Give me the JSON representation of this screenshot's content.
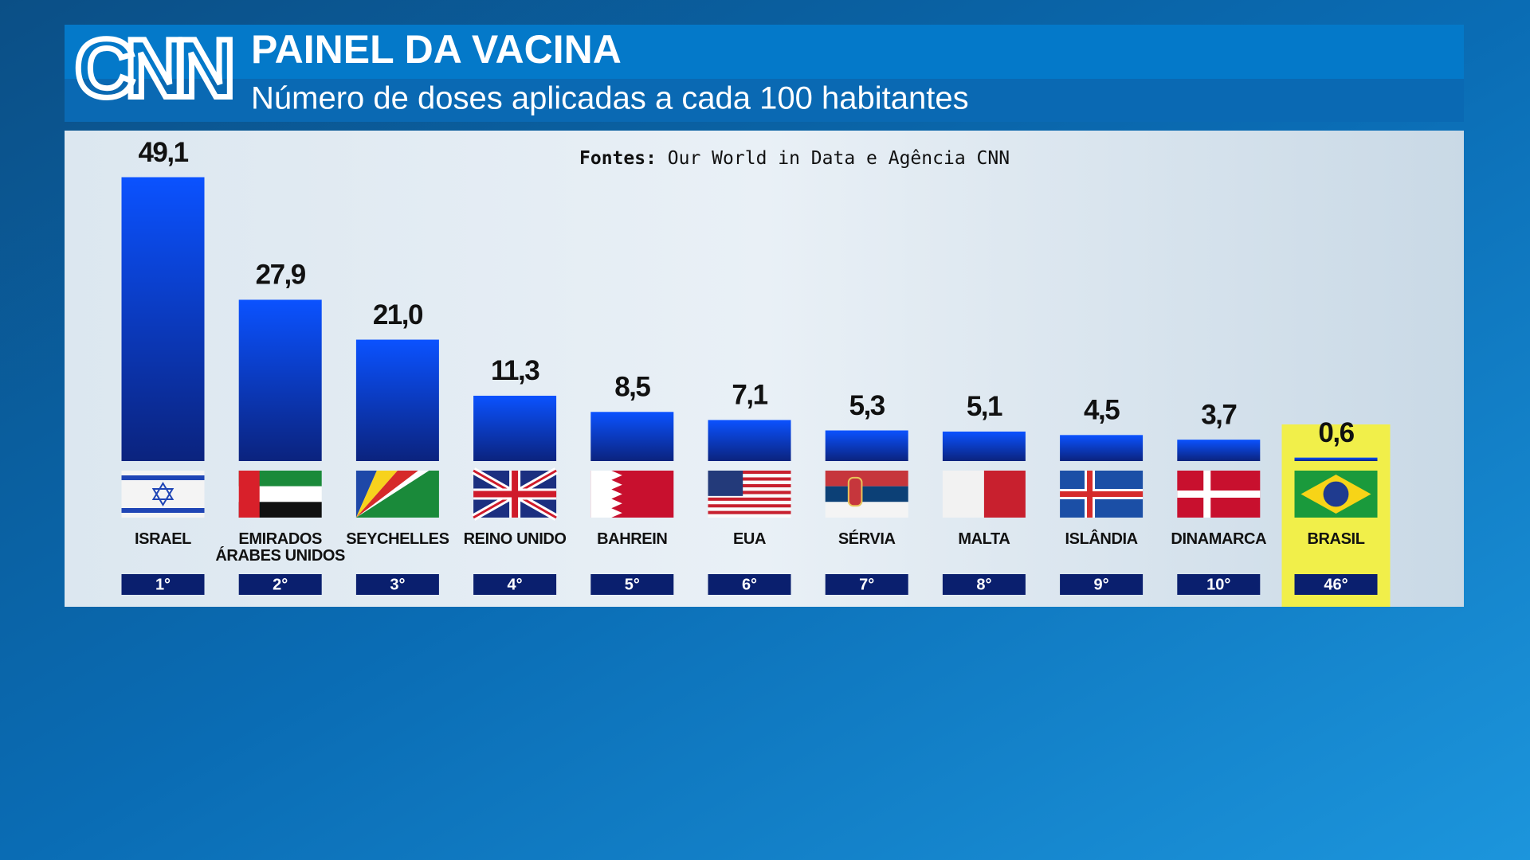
{
  "logo": "CNN",
  "chart_data": {
    "type": "bar",
    "title": "PAINEL DA VACINA",
    "subtitle": "Número de doses aplicadas a cada 100 habitantes",
    "source_label": "Fontes:",
    "source": "Our World in Data e Agência CNN",
    "categories": [
      "ISRAEL",
      "EMIRADOS ÁRABES UNIDOS",
      "SEYCHELLES",
      "REINO UNIDO",
      "BAHREIN",
      "EUA",
      "SÉRVIA",
      "MALTA",
      "ISLÂNDIA",
      "DINAMARCA",
      "BRASIL"
    ],
    "values": [
      49.1,
      27.9,
      21.0,
      11.3,
      8.5,
      7.1,
      5.3,
      5.1,
      4.5,
      3.7,
      0.6
    ],
    "value_labels": [
      "49,1",
      "27,9",
      "21,0",
      "11,3",
      "8,5",
      "7,1",
      "5,3",
      "5,1",
      "4,5",
      "3,7",
      "0,6"
    ],
    "ranks": [
      "1°",
      "2°",
      "3°",
      "4°",
      "5°",
      "6°",
      "7°",
      "8°",
      "9°",
      "10°",
      "46°"
    ],
    "highlight_color": "#f1ef4a"
  }
}
